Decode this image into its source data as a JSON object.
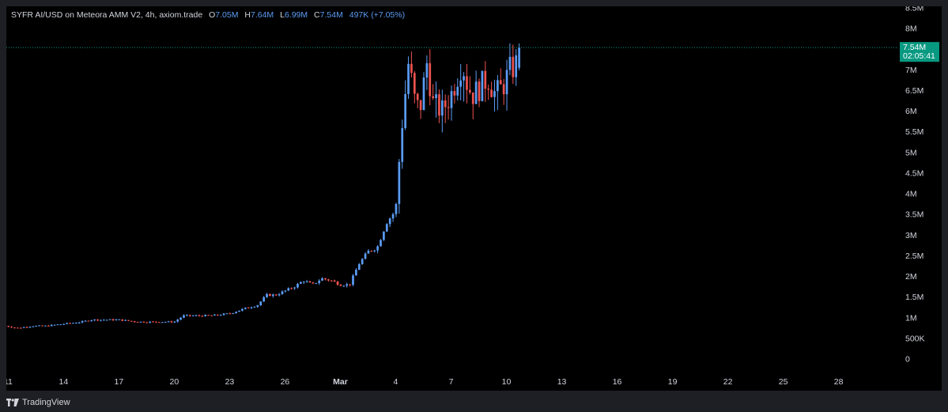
{
  "legend": {
    "title": "SYFR AI/USD on Meteora AMM V2, 4h, axiom.trade",
    "o_label": "O",
    "o_value": "7.05M",
    "h_label": "H",
    "h_value": "7.64M",
    "l_label": "L",
    "l_value": "6.99M",
    "c_label": "C",
    "c_value": "7.54M",
    "change": "497K (+7.05%)"
  },
  "price_tag": {
    "price": "7.54M",
    "countdown": "02:05:41"
  },
  "footer": {
    "brand": "TradingView"
  },
  "colors": {
    "up": "#5b9cf6",
    "down": "#ef5350",
    "background": "#000000",
    "axis_text": "#d1d4dc",
    "price_tag": "#089981",
    "price_line": "#089981"
  },
  "chart_data": {
    "type": "candlestick",
    "symbol": "SYFR AI/USD",
    "interval": "4h",
    "ylim": [
      0,
      8.5
    ],
    "y_unit": "M",
    "y_ticks": [
      {
        "value": 8.5,
        "label": "8.5M"
      },
      {
        "value": 8,
        "label": "8M"
      },
      {
        "value": 7.5,
        "label": "7.5M"
      },
      {
        "value": 7,
        "label": "7M"
      },
      {
        "value": 6.5,
        "label": "6.5M"
      },
      {
        "value": 6,
        "label": "6M"
      },
      {
        "value": 5.5,
        "label": "5.5M"
      },
      {
        "value": 5,
        "label": "5M"
      },
      {
        "value": 4.5,
        "label": "4.5M"
      },
      {
        "value": 4,
        "label": "4M"
      },
      {
        "value": 3.5,
        "label": "3.5M"
      },
      {
        "value": 3,
        "label": "3M"
      },
      {
        "value": 2.5,
        "label": "2.5M"
      },
      {
        "value": 2,
        "label": "2M"
      },
      {
        "value": 1.5,
        "label": "1.5M"
      },
      {
        "value": 1,
        "label": "1M"
      },
      {
        "value": 0.5,
        "label": "500K"
      },
      {
        "value": 0,
        "label": "0"
      }
    ],
    "x_ticks": [
      {
        "day": 11,
        "label": "11"
      },
      {
        "day": 14,
        "label": "14"
      },
      {
        "day": 17,
        "label": "17"
      },
      {
        "day": 20,
        "label": "20"
      },
      {
        "day": 23,
        "label": "23"
      },
      {
        "day": 26,
        "label": "26"
      },
      {
        "day": 29,
        "label": "Mar"
      },
      {
        "day": 32,
        "label": "4"
      },
      {
        "day": 35,
        "label": "7"
      },
      {
        "day": 38,
        "label": "10"
      },
      {
        "day": 41,
        "label": "13"
      },
      {
        "day": 44,
        "label": "16"
      },
      {
        "day": 47,
        "label": "19"
      },
      {
        "day": 50,
        "label": "22"
      },
      {
        "day": 53,
        "label": "25"
      },
      {
        "day": 56,
        "label": "28"
      }
    ],
    "xlim_days": [
      10.9,
      59.1
    ],
    "x_note": "day index counted from Feb 1; Mar 1 = 29",
    "last_price": 7.54,
    "control_points": [
      [
        10.85,
        0.8
      ],
      [
        11.5,
        0.75
      ],
      [
        12.3,
        0.8
      ],
      [
        13.0,
        0.8
      ],
      [
        14.0,
        0.85
      ],
      [
        15.0,
        0.9
      ],
      [
        15.5,
        0.95
      ],
      [
        16.0,
        0.95
      ],
      [
        17.0,
        0.95
      ],
      [
        18.0,
        0.9
      ],
      [
        19.0,
        0.9
      ],
      [
        20.0,
        0.9
      ],
      [
        20.5,
        1.05
      ],
      [
        21.0,
        1.05
      ],
      [
        22.0,
        1.05
      ],
      [
        23.0,
        1.1
      ],
      [
        24.0,
        1.25
      ],
      [
        24.5,
        1.3
      ],
      [
        25.0,
        1.55
      ],
      [
        25.5,
        1.55
      ],
      [
        26.0,
        1.65
      ],
      [
        26.5,
        1.75
      ],
      [
        27.0,
        1.9
      ],
      [
        27.5,
        1.8
      ],
      [
        28.0,
        1.95
      ],
      [
        28.5,
        1.9
      ],
      [
        29.0,
        1.8
      ],
      [
        29.5,
        1.8
      ],
      [
        30.0,
        2.3
      ],
      [
        30.5,
        2.6
      ],
      [
        31.0,
        2.7
      ],
      [
        31.5,
        3.3
      ],
      [
        32.0,
        3.6
      ],
      [
        32.3,
        5.5
      ],
      [
        32.7,
        7.2
      ],
      [
        33.0,
        6.3
      ],
      [
        33.3,
        6.0
      ],
      [
        33.7,
        7.2
      ],
      [
        34.0,
        6.2
      ],
      [
        34.5,
        6.0
      ],
      [
        35.0,
        6.4
      ],
      [
        35.3,
        6.8
      ],
      [
        35.6,
        7.2
      ],
      [
        35.9,
        6.6
      ],
      [
        36.2,
        6.4
      ],
      [
        36.6,
        6.6
      ],
      [
        37.0,
        6.8
      ],
      [
        37.4,
        6.4
      ],
      [
        37.8,
        6.6
      ],
      [
        38.2,
        7.0
      ],
      [
        38.5,
        7.1
      ],
      [
        38.75,
        7.54
      ]
    ],
    "candle_step_days": 0.1667,
    "first_candle_day": 10.85,
    "last_candle_day": 38.75
  }
}
